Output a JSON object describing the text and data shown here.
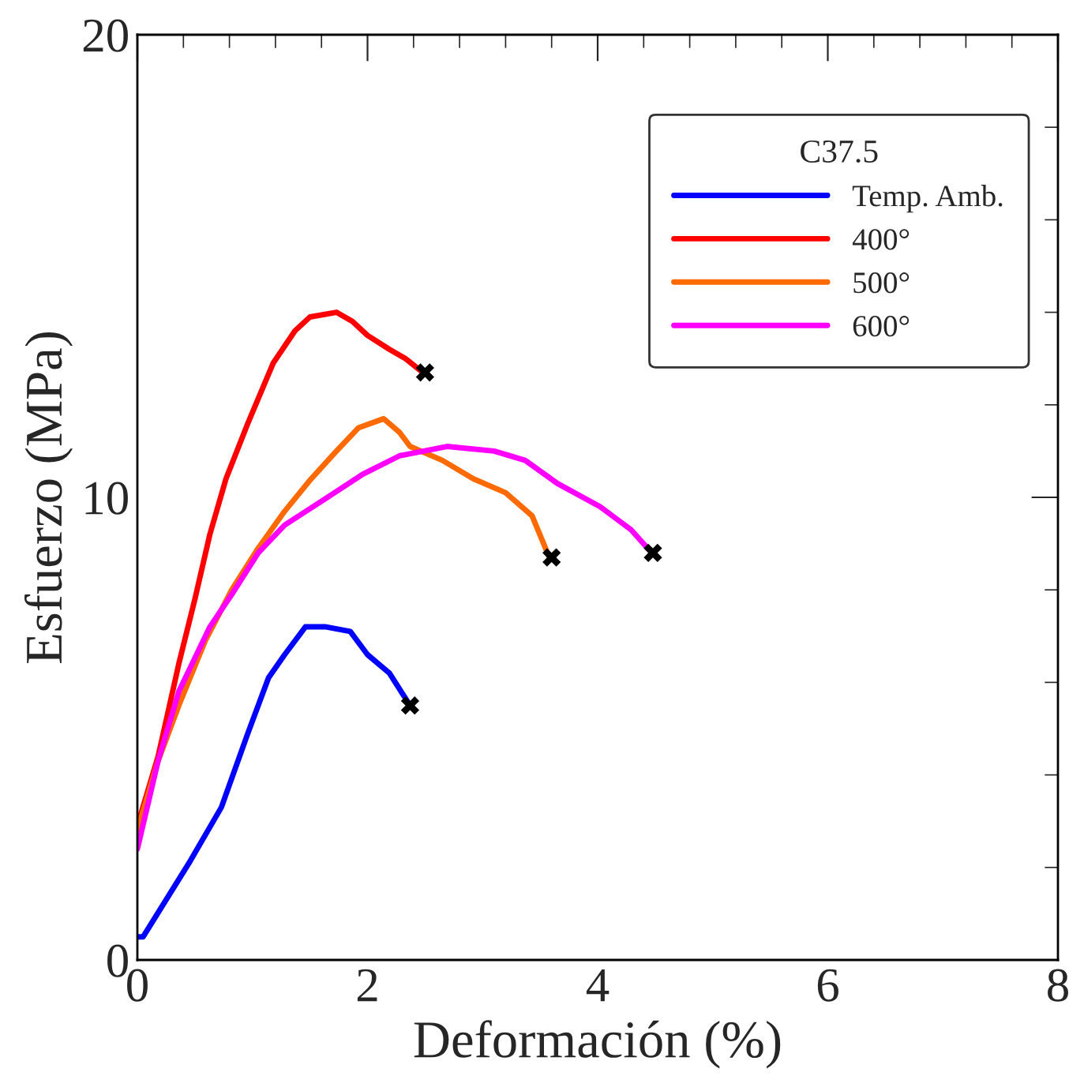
{
  "chart_data": {
    "type": "line",
    "xlabel": "Deformación (%)",
    "ylabel": "Esfuerzo (MPa)",
    "legend_title": "C37.5",
    "legend": "top right",
    "grid": false,
    "xlim": [
      0,
      8
    ],
    "xticks": [
      0,
      2,
      4,
      6,
      8
    ],
    "ylim": [
      0,
      20
    ],
    "yticks": [
      0,
      10,
      20
    ],
    "series": [
      {
        "name": "Temp. Amb.",
        "color": "#0000ff",
        "x": [
          0,
          0.05,
          0.45,
          0.73,
          0.96,
          1.14,
          1.28,
          1.46,
          1.64,
          1.85,
          2.0,
          2.19,
          2.37
        ],
        "values": [
          0.5,
          0.5,
          2.1,
          3.3,
          4.9,
          6.1,
          6.6,
          7.2,
          7.2,
          7.1,
          6.6,
          6.2,
          5.5
        ]
      },
      {
        "name": "400°",
        "color": "#ff0000",
        "x": [
          0,
          0.18,
          0.36,
          0.5,
          0.63,
          0.77,
          0.96,
          1.18,
          1.37,
          1.5,
          1.73,
          1.87,
          2.0,
          2.19,
          2.33,
          2.48
        ],
        "values": [
          2.9,
          4.4,
          6.4,
          7.8,
          9.2,
          10.4,
          11.6,
          12.9,
          13.6,
          13.9,
          14.0,
          13.8,
          13.5,
          13.2,
          13.0,
          12.7
        ]
      },
      {
        "name": "500°",
        "color": "#ff6a00",
        "x": [
          0,
          0.18,
          0.36,
          0.59,
          0.82,
          1.05,
          1.28,
          1.51,
          1.73,
          1.92,
          2.14,
          2.28,
          2.37,
          2.65,
          2.92,
          3.2,
          3.43,
          3.58
        ],
        "values": [
          2.8,
          4.3,
          5.5,
          6.9,
          8.0,
          8.9,
          9.7,
          10.4,
          11.0,
          11.5,
          11.7,
          11.4,
          11.1,
          10.8,
          10.4,
          10.1,
          9.6,
          8.7
        ]
      },
      {
        "name": "600°",
        "color": "#ff00ff",
        "x": [
          0,
          0.18,
          0.36,
          0.63,
          0.82,
          1.05,
          1.28,
          1.59,
          1.96,
          2.28,
          2.69,
          3.1,
          3.37,
          3.65,
          4.02,
          4.29,
          4.47
        ],
        "values": [
          2.4,
          4.3,
          5.8,
          7.2,
          7.9,
          8.8,
          9.4,
          9.9,
          10.5,
          10.9,
          11.1,
          11.0,
          10.8,
          10.3,
          9.8,
          9.3,
          8.8
        ]
      },
      {
        "type": "scatter",
        "marker": "cross",
        "color": "#000000",
        "x": [
          2.37,
          2.5,
          3.6,
          4.48
        ],
        "values": [
          5.5,
          12.7,
          8.7,
          8.8
        ]
      }
    ]
  }
}
